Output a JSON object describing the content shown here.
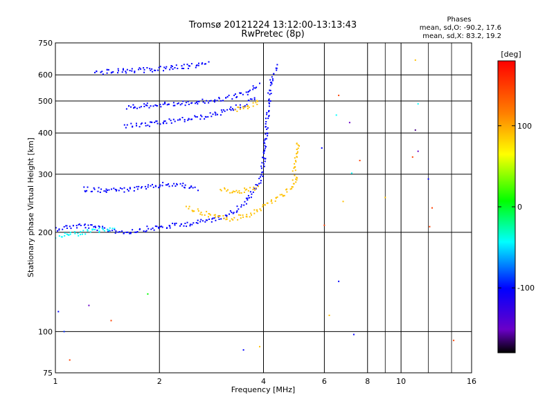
{
  "chart_data": {
    "type": "scatter",
    "title": "Tromsø 20121224 13:12:00-13:13:43",
    "subtitle": "RwPretec (8p)",
    "xlabel": "Frequency [MHz]",
    "ylabel": "Stationary phase Virtual Height [km]",
    "x_scale": "log",
    "y_scale": "log",
    "xlim": [
      1,
      16
    ],
    "ylim": [
      75,
      750
    ],
    "x_ticks": [
      1,
      2,
      4,
      6,
      8,
      10,
      16
    ],
    "x_tick_labels": [
      "1",
      "2",
      "4",
      "6",
      "8",
      "10",
      "16"
    ],
    "y_ticks": [
      75,
      100,
      200,
      300,
      400,
      500,
      600,
      750
    ],
    "y_tick_labels": [
      "75",
      "100",
      "200",
      "300",
      "400",
      "500",
      "600",
      "750"
    ],
    "grid": true,
    "stats": {
      "heading": "Phases",
      "line_o": "mean, sd,O: -90.2, 17.6",
      "line_x": "mean, sd,X: 83.2, 19.2"
    },
    "colorbar": {
      "unit_label": "[deg]",
      "range": [
        -180,
        180
      ],
      "ticks": [
        100,
        0,
        -100
      ],
      "tick_labels": [
        "100",
        "0",
        "-100"
      ]
    },
    "traces": [
      {
        "x": [
          1.0,
          1.1,
          1.2,
          1.35,
          1.6,
          1.85,
          2.1,
          2.4,
          2.7,
          3.0,
          3.3,
          3.6,
          3.9,
          4.0
        ],
        "y": [
          205,
          208,
          210,
          205,
          200,
          205,
          208,
          212,
          216,
          222,
          232,
          250,
          285,
          320
        ],
        "phase": -100
      },
      {
        "x": [
          1.0,
          1.15,
          1.3,
          1.5
        ],
        "y": [
          195,
          198,
          202,
          205
        ],
        "phase": -40
      },
      {
        "x": [
          4.0,
          4.05,
          4.1,
          4.15,
          4.2,
          4.3,
          4.4
        ],
        "y": [
          320,
          380,
          440,
          500,
          560,
          610,
          640
        ],
        "phase": -100
      },
      {
        "x": [
          2.4,
          2.8,
          3.2,
          3.6,
          4.0,
          4.4,
          4.8,
          5.0
        ],
        "y": [
          238,
          225,
          220,
          225,
          240,
          255,
          270,
          300
        ],
        "phase": 100
      },
      {
        "x": [
          4.9,
          5.0,
          5.05
        ],
        "y": [
          300,
          340,
          380
        ],
        "phase": 100
      },
      {
        "x": [
          1.6,
          1.9,
          2.2,
          2.6,
          3.0,
          3.4,
          3.8
        ],
        "y": [
          420,
          425,
          435,
          445,
          460,
          480,
          510
        ],
        "phase": -100
      },
      {
        "x": [
          1.6,
          1.9,
          2.2,
          2.6,
          3.0,
          3.5,
          3.9
        ],
        "y": [
          480,
          485,
          490,
          495,
          505,
          525,
          560
        ],
        "phase": -100
      },
      {
        "x": [
          3.3,
          3.6,
          3.9
        ],
        "y": [
          470,
          480,
          500
        ],
        "phase": 100
      },
      {
        "x": [
          1.3,
          1.5,
          1.8,
          2.1,
          2.4,
          2.6,
          2.8
        ],
        "y": [
          610,
          615,
          620,
          628,
          635,
          642,
          650
        ],
        "phase": -100
      },
      {
        "x": [
          1.2,
          1.5,
          1.8,
          2.1,
          2.4,
          2.6
        ],
        "y": [
          270,
          268,
          272,
          280,
          276,
          270
        ],
        "phase": -100
      },
      {
        "x": [
          3.0,
          3.3,
          3.6,
          3.9
        ],
        "y": [
          270,
          265,
          268,
          275
        ],
        "phase": 100
      }
    ],
    "isolated_points": [
      {
        "x": 1.02,
        "y": 115,
        "phase": -100
      },
      {
        "x": 1.06,
        "y": 100,
        "phase": -90
      },
      {
        "x": 1.1,
        "y": 82,
        "phase": 150
      },
      {
        "x": 1.25,
        "y": 120,
        "phase": -150
      },
      {
        "x": 1.45,
        "y": 108,
        "phase": 150
      },
      {
        "x": 1.85,
        "y": 130,
        "phase": 0
      },
      {
        "x": 3.5,
        "y": 88,
        "phase": -100
      },
      {
        "x": 3.9,
        "y": 90,
        "phase": 100
      },
      {
        "x": 6.2,
        "y": 112,
        "phase": 100
      },
      {
        "x": 6.6,
        "y": 142,
        "phase": -100
      },
      {
        "x": 7.3,
        "y": 98,
        "phase": -100
      },
      {
        "x": 9.0,
        "y": 255,
        "phase": 100
      },
      {
        "x": 11.0,
        "y": 665,
        "phase": 100
      },
      {
        "x": 11.2,
        "y": 490,
        "phase": -40
      },
      {
        "x": 11.2,
        "y": 352,
        "phase": -150
      },
      {
        "x": 11.0,
        "y": 408,
        "phase": -160
      },
      {
        "x": 12.1,
        "y": 208,
        "phase": 150
      },
      {
        "x": 12.3,
        "y": 237,
        "phase": 150
      },
      {
        "x": 14.2,
        "y": 94,
        "phase": 150
      },
      {
        "x": 6.5,
        "y": 453,
        "phase": -40
      },
      {
        "x": 6.6,
        "y": 520,
        "phase": 150
      },
      {
        "x": 7.1,
        "y": 430,
        "phase": -150
      },
      {
        "x": 7.2,
        "y": 302,
        "phase": -40
      },
      {
        "x": 7.6,
        "y": 330,
        "phase": 150
      },
      {
        "x": 5.9,
        "y": 360,
        "phase": -100
      },
      {
        "x": 6.0,
        "y": 210,
        "phase": 150
      },
      {
        "x": 6.8,
        "y": 248,
        "phase": 100
      },
      {
        "x": 12.0,
        "y": 290,
        "phase": -100
      },
      {
        "x": 10.8,
        "y": 338,
        "phase": 150
      }
    ]
  }
}
